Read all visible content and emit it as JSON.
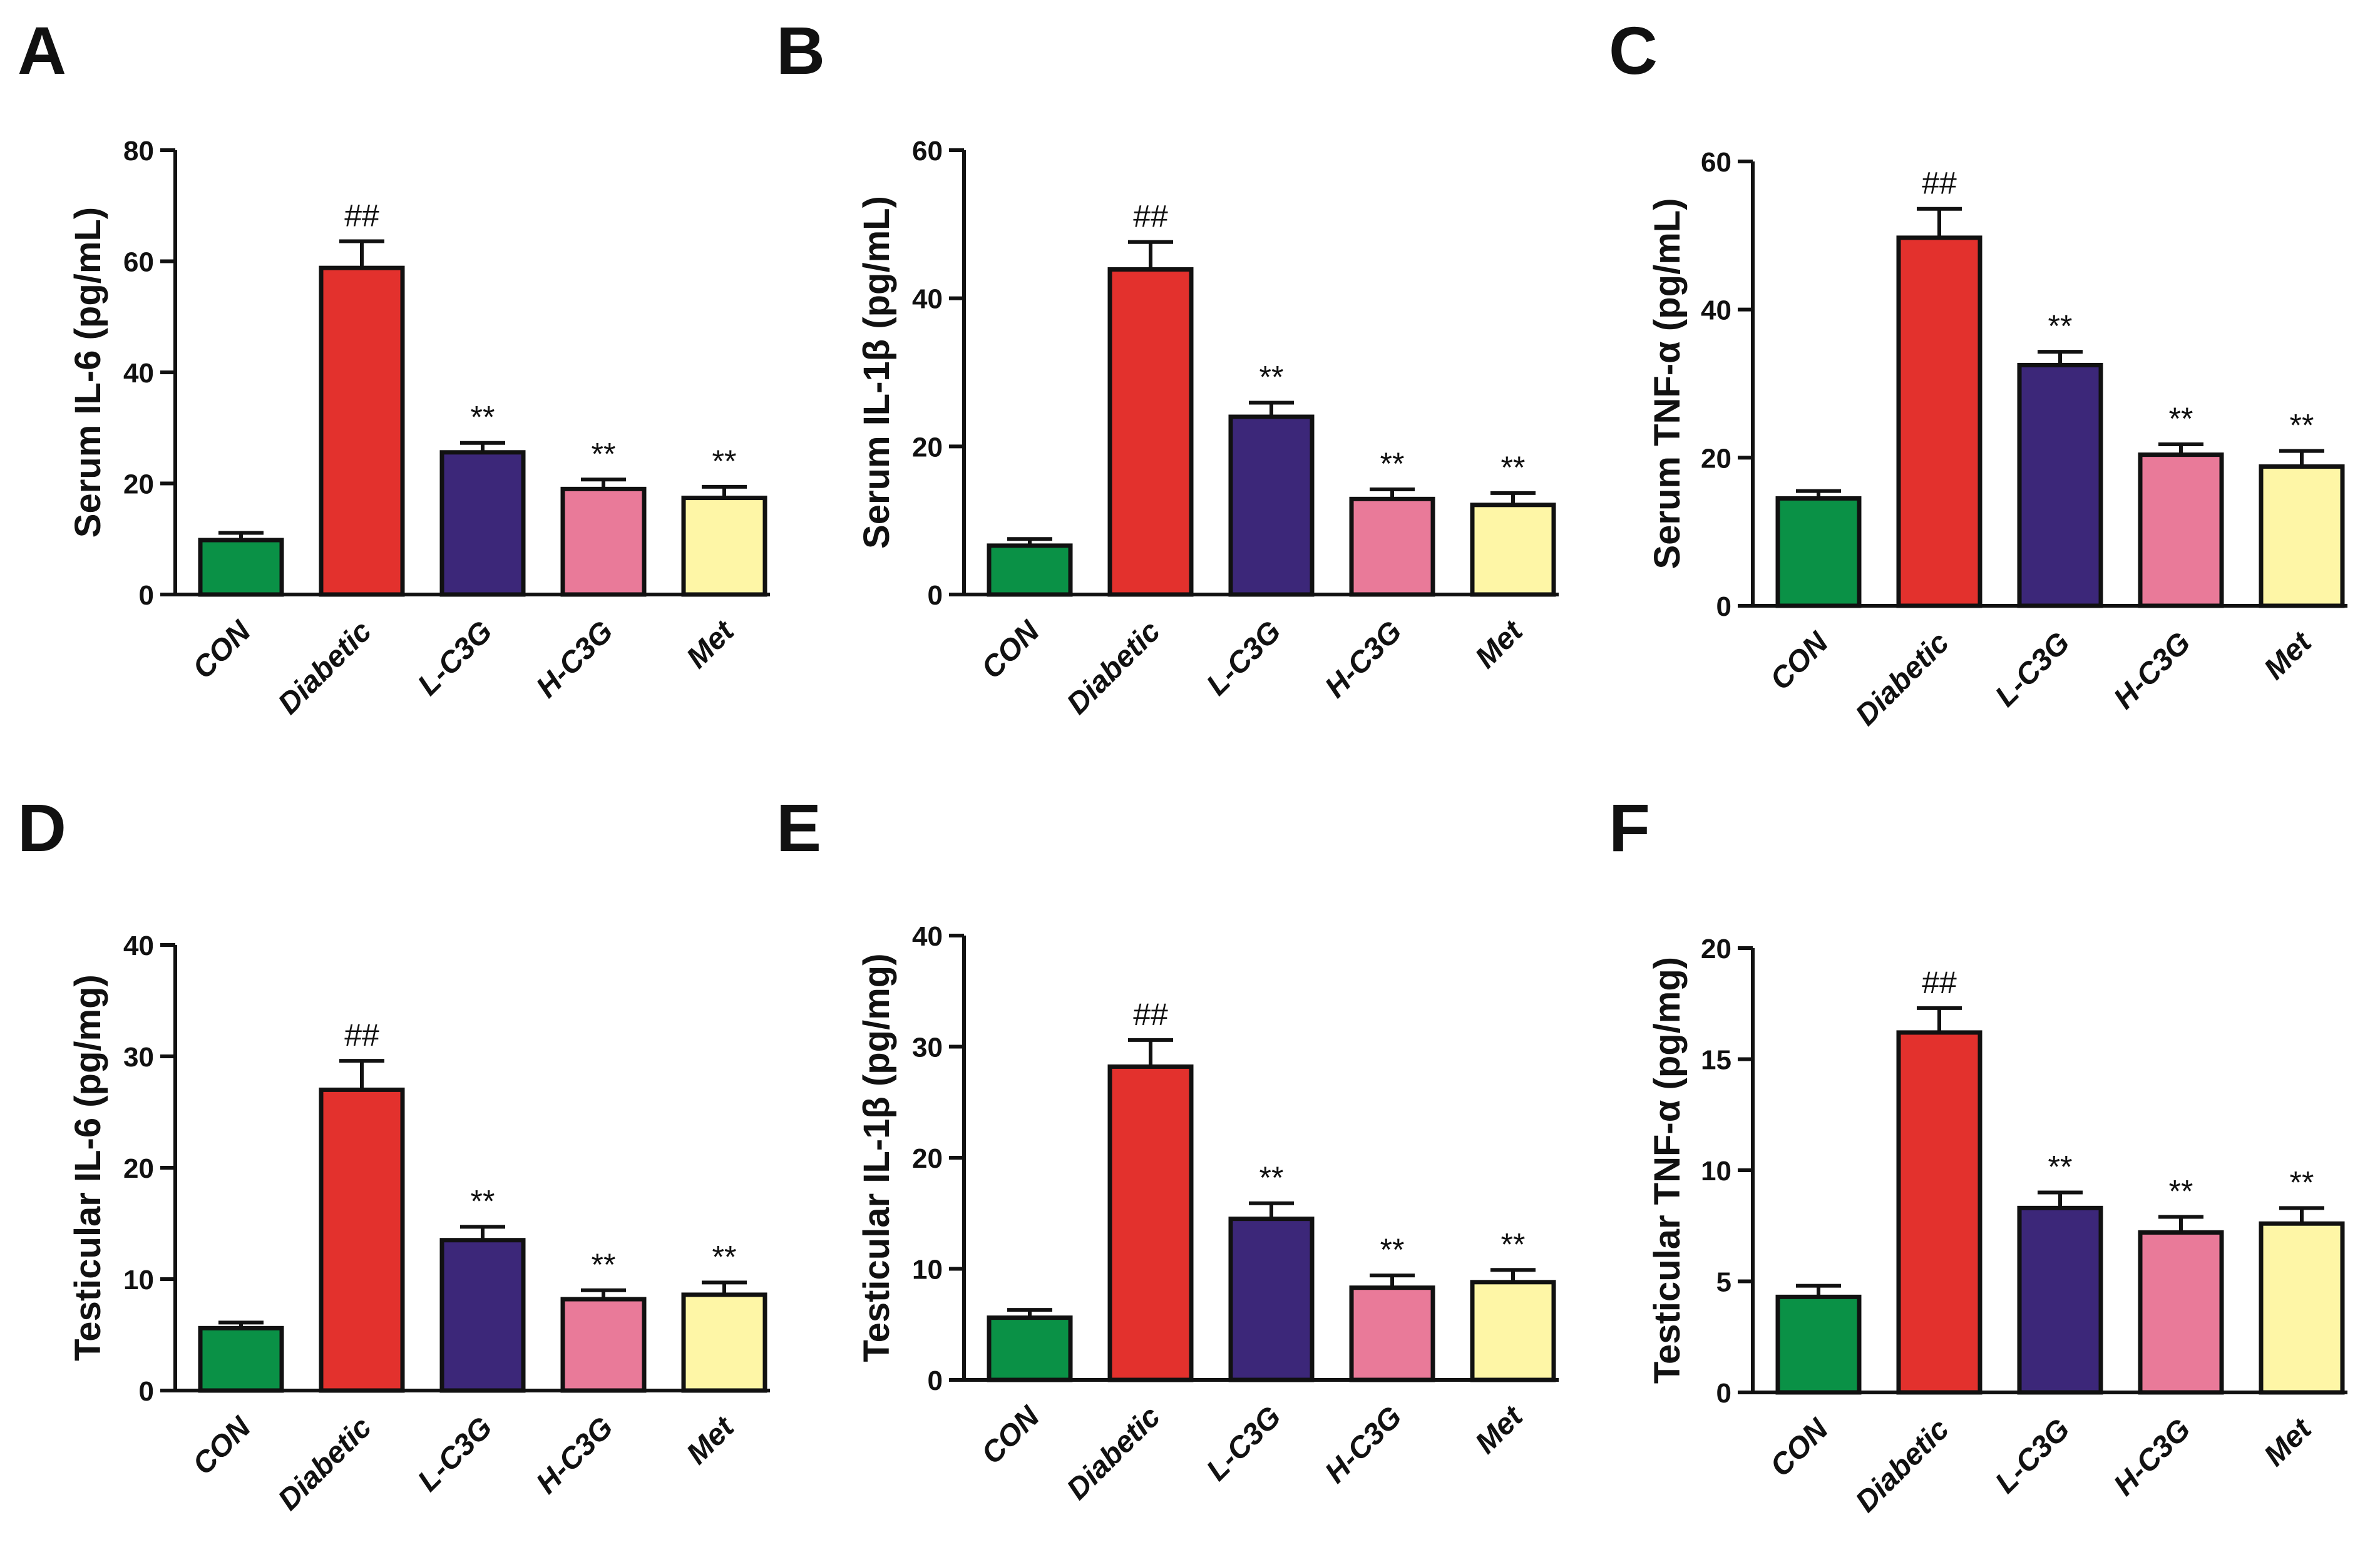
{
  "figure": {
    "title": ""
  },
  "chart_data": [
    {
      "panel": "A",
      "type": "bar",
      "ylabel": "Serum IL-6 (pg/mL)",
      "ylim": [
        0,
        80
      ],
      "yticks": [
        0,
        20,
        40,
        60,
        80
      ],
      "categories": [
        "CON",
        "Diabetic",
        "L-C3G",
        "H-C3G",
        "Met"
      ],
      "values": [
        9.8,
        58.8,
        25.6,
        19.0,
        17.4
      ],
      "errors": [
        1.3,
        4.8,
        1.7,
        1.7,
        2.0
      ],
      "annotations": [
        "",
        "##",
        "**",
        "**",
        "**"
      ]
    },
    {
      "panel": "B",
      "type": "bar",
      "ylabel": "Serum IL-1β  (pg/mL)",
      "ylim": [
        0,
        60
      ],
      "yticks": [
        0,
        20,
        40,
        60
      ],
      "categories": [
        "CON",
        "Diabetic",
        "L-C3G",
        "H-C3G",
        "Met"
      ],
      "values": [
        6.6,
        43.9,
        24.0,
        12.9,
        12.1
      ],
      "errors": [
        0.9,
        3.7,
        1.9,
        1.3,
        1.6
      ],
      "annotations": [
        "",
        "##",
        "**",
        "**",
        "**"
      ]
    },
    {
      "panel": "C",
      "type": "bar",
      "ylabel": "Serum TNF-α  (pg/mL)",
      "ylim": [
        0,
        60
      ],
      "yticks": [
        0,
        20,
        40,
        60
      ],
      "categories": [
        "CON",
        "Diabetic",
        "L-C3G",
        "H-C3G",
        "Met"
      ],
      "values": [
        14.5,
        49.7,
        32.5,
        20.4,
        18.8
      ],
      "errors": [
        1.0,
        3.9,
        1.8,
        1.4,
        2.1
      ],
      "annotations": [
        "",
        "##",
        "**",
        "**",
        "**"
      ]
    },
    {
      "panel": "D",
      "type": "bar",
      "ylabel": "Testicular  IL-6 (pg/mg)",
      "ylim": [
        0,
        40
      ],
      "yticks": [
        0,
        10,
        20,
        30,
        40
      ],
      "categories": [
        "CON",
        "Diabetic",
        "L-C3G",
        "H-C3G",
        "Met"
      ],
      "values": [
        5.6,
        27.0,
        13.5,
        8.2,
        8.6
      ],
      "errors": [
        0.5,
        2.6,
        1.2,
        0.8,
        1.1
      ],
      "annotations": [
        "",
        "##",
        "**",
        "**",
        "**"
      ]
    },
    {
      "panel": "E",
      "type": "bar",
      "ylabel": "Testicular  IL-1β  (pg/mg)",
      "ylim": [
        0,
        40
      ],
      "yticks": [
        0,
        10,
        20,
        30,
        40
      ],
      "categories": [
        "CON",
        "Diabetic",
        "L-C3G",
        "H-C3G",
        "Met"
      ],
      "values": [
        5.6,
        28.2,
        14.5,
        8.3,
        8.8
      ],
      "errors": [
        0.7,
        2.4,
        1.4,
        1.1,
        1.1
      ],
      "annotations": [
        "",
        "##",
        "**",
        "**",
        "**"
      ]
    },
    {
      "panel": "F",
      "type": "bar",
      "ylabel": "Testicular TNF-α  (pg/mg)",
      "ylim": [
        0,
        20
      ],
      "yticks": [
        0,
        5,
        10,
        15,
        20
      ],
      "categories": [
        "CON",
        "Diabetic",
        "L-C3G",
        "H-C3G",
        "Met"
      ],
      "values": [
        4.3,
        16.2,
        8.3,
        7.2,
        7.6
      ],
      "errors": [
        0.5,
        1.1,
        0.7,
        0.7,
        0.7
      ],
      "annotations": [
        "",
        "##",
        "**",
        "**",
        "**"
      ]
    }
  ],
  "colors": {
    "CON": "#0a9146",
    "Diabetic": "#e3312d",
    "L-C3G": "#3c2779",
    "H-C3G": "#e97a99",
    "Met": "#fef6a6",
    "stroke": "#111111"
  }
}
